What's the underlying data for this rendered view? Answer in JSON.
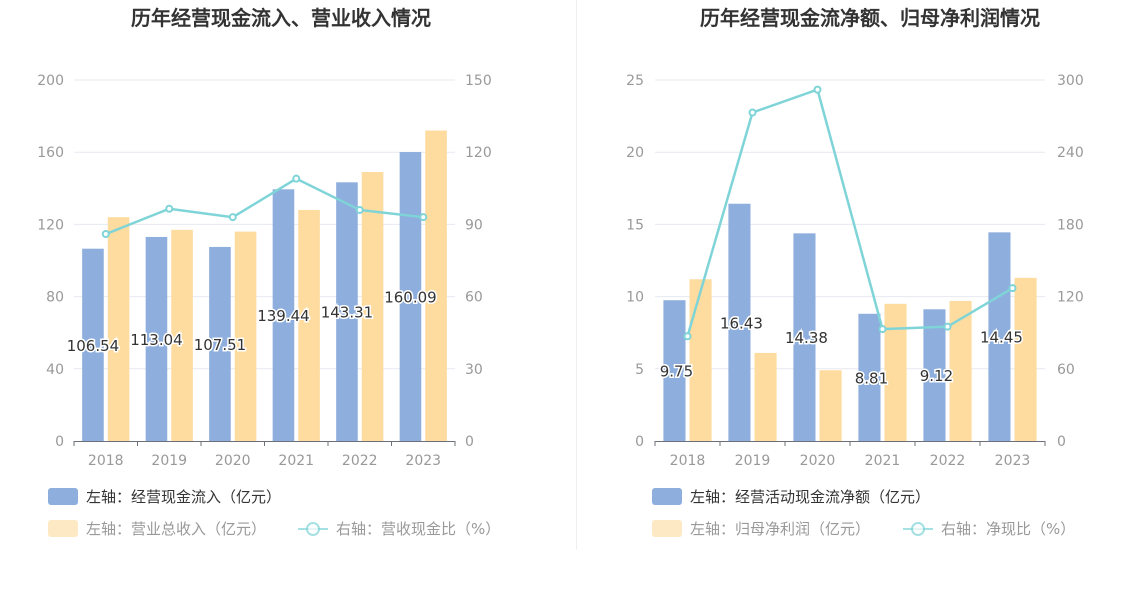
{
  "chart_data": [
    {
      "type": "bar",
      "title": "历年经营现金流入、营业收入情况",
      "categories": [
        "2018",
        "2019",
        "2020",
        "2021",
        "2022",
        "2023"
      ],
      "left_axis": {
        "ylim": [
          0,
          200
        ],
        "ticks": [
          "0",
          "40",
          "80",
          "120",
          "160",
          "200"
        ]
      },
      "right_axis": {
        "ylim": [
          0,
          150
        ],
        "ticks": [
          "0",
          "30",
          "60",
          "90",
          "120",
          "150"
        ]
      },
      "series": [
        {
          "name": "左轴：经营现金流入（亿元）",
          "type": "bar",
          "axis": "left",
          "color": "#8eaedd",
          "values": [
            106.54,
            113.04,
            107.51,
            139.44,
            143.31,
            160.09
          ],
          "labels": [
            "106.54",
            "113.04",
            "107.51",
            "139.44",
            "143.31",
            "160.09"
          ]
        },
        {
          "name": "左轴：营业总收入（亿元）",
          "type": "bar",
          "axis": "left",
          "color": "#fedb9e",
          "values": [
            124,
            117,
            116,
            128,
            149,
            172
          ]
        },
        {
          "name": "右轴：营收现金比（%）",
          "type": "line",
          "axis": "right",
          "color": "#7fd4d8",
          "values": [
            86,
            96.5,
            93,
            109,
            96,
            93
          ]
        }
      ],
      "legend": "bottom"
    },
    {
      "type": "bar",
      "title": "历年经营现金流净额、归母净利润情况",
      "categories": [
        "2018",
        "2019",
        "2020",
        "2021",
        "2022",
        "2023"
      ],
      "left_axis": {
        "ylim": [
          0,
          25
        ],
        "ticks": [
          "0",
          "5",
          "10",
          "15",
          "20",
          "25"
        ]
      },
      "right_axis": {
        "ylim": [
          0,
          300
        ],
        "ticks": [
          "0",
          "60",
          "120",
          "180",
          "240",
          "300"
        ]
      },
      "series": [
        {
          "name": "左轴：经营活动现金流净额（亿元）",
          "type": "bar",
          "axis": "left",
          "color": "#8eaedd",
          "values": [
            9.75,
            16.43,
            14.38,
            8.81,
            9.12,
            14.45
          ],
          "labels": [
            "9.75",
            "16.43",
            "14.38",
            "8.81",
            "9.12",
            "14.45"
          ]
        },
        {
          "name": "左轴：归母净利润（亿元）",
          "type": "bar",
          "axis": "left",
          "color": "#fedb9e",
          "values": [
            11.2,
            6.1,
            4.9,
            9.5,
            9.7,
            11.3
          ]
        },
        {
          "name": "右轴：净现比（%）",
          "type": "line",
          "axis": "right",
          "color": "#7fd4d8",
          "values": [
            87,
            273,
            292,
            93,
            95,
            127
          ]
        }
      ],
      "legend": "bottom"
    }
  ]
}
